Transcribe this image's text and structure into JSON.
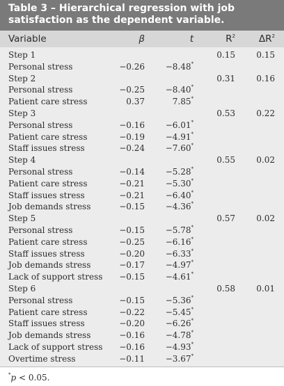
{
  "title": "Table 3 – Hierarchical regression with job satisfaction as the dependent variable.",
  "columns": {
    "variable": "Variable",
    "beta": "β",
    "t": "t",
    "r2": "R",
    "r2_sup": "2",
    "dr2": "ΔR",
    "dr2_sup": "2"
  },
  "rows": [
    {
      "variable": "Step 1",
      "beta": "",
      "t": "",
      "sig": "",
      "r2": "0.15",
      "dr2": "0.15"
    },
    {
      "variable": "Personal stress",
      "beta": "−0.26",
      "t": "−8.48",
      "sig": "*",
      "r2": "",
      "dr2": ""
    },
    {
      "variable": "Step 2",
      "beta": "",
      "t": "",
      "sig": "",
      "r2": "0.31",
      "dr2": "0.16"
    },
    {
      "variable": "Personal stress",
      "beta": "−0.25",
      "t": "−8.40",
      "sig": "*",
      "r2": "",
      "dr2": ""
    },
    {
      "variable": "Patient care stress",
      "beta": "0.37",
      "t": "7.85",
      "sig": "*",
      "r2": "",
      "dr2": ""
    },
    {
      "variable": "Step 3",
      "beta": "",
      "t": "",
      "sig": "",
      "r2": "0.53",
      "dr2": "0.22"
    },
    {
      "variable": "Personal stress",
      "beta": "−0.16",
      "t": "−6.01",
      "sig": "*",
      "r2": "",
      "dr2": ""
    },
    {
      "variable": "Patient care stress",
      "beta": "−0.19",
      "t": "−4.91",
      "sig": "*",
      "r2": "",
      "dr2": ""
    },
    {
      "variable": "Staff issues stress",
      "beta": "−0.24",
      "t": "−7.60",
      "sig": "*",
      "r2": "",
      "dr2": ""
    },
    {
      "variable": "Step 4",
      "beta": "",
      "t": "",
      "sig": "",
      "r2": "0.55",
      "dr2": "0.02"
    },
    {
      "variable": "Personal stress",
      "beta": "−0.14",
      "t": "−5.28",
      "sig": "*",
      "r2": "",
      "dr2": ""
    },
    {
      "variable": "Patient care stress",
      "beta": "−0.21",
      "t": "−5.30",
      "sig": "*",
      "r2": "",
      "dr2": ""
    },
    {
      "variable": "Staff issues stress",
      "beta": "−0.21",
      "t": "−6.40",
      "sig": "*",
      "r2": "",
      "dr2": ""
    },
    {
      "variable": "Job demands stress",
      "beta": "−0.15",
      "t": "−4.36",
      "sig": "*",
      "r2": "",
      "dr2": ""
    },
    {
      "variable": "Step 5",
      "beta": "",
      "t": "",
      "sig": "",
      "r2": "0.57",
      "dr2": "0.02"
    },
    {
      "variable": "Personal stress",
      "beta": "−0.15",
      "t": "−5.78",
      "sig": "*",
      "r2": "",
      "dr2": ""
    },
    {
      "variable": "Patient care stress",
      "beta": "−0.25",
      "t": "−6.16",
      "sig": "*",
      "r2": "",
      "dr2": ""
    },
    {
      "variable": "Staff issues stress",
      "beta": "−0.20",
      "t": "−6.33",
      "sig": "*",
      "r2": "",
      "dr2": ""
    },
    {
      "variable": "Job demands stress",
      "beta": "−0.17",
      "t": "−4.97",
      "sig": "*",
      "r2": "",
      "dr2": ""
    },
    {
      "variable": "Lack of support stress",
      "beta": "−0.15",
      "t": "−4.61",
      "sig": "*",
      "r2": "",
      "dr2": ""
    },
    {
      "variable": "Step 6",
      "beta": "",
      "t": "",
      "sig": "",
      "r2": "0.58",
      "dr2": "0.01"
    },
    {
      "variable": "Personal stress",
      "beta": "−0.15",
      "t": "−5.36",
      "sig": "*",
      "r2": "",
      "dr2": ""
    },
    {
      "variable": "Patient care stress",
      "beta": "−0.22",
      "t": "−5.45",
      "sig": "*",
      "r2": "",
      "dr2": ""
    },
    {
      "variable": "Staff issues stress",
      "beta": "−0.20",
      "t": "−6.26",
      "sig": "*",
      "r2": "",
      "dr2": ""
    },
    {
      "variable": "Job demands stress",
      "beta": "−0.16",
      "t": "−4.78",
      "sig": "*",
      "r2": "",
      "dr2": ""
    },
    {
      "variable": "Lack of support stress",
      "beta": "−0.16",
      "t": "−4.93",
      "sig": "*",
      "r2": "",
      "dr2": ""
    },
    {
      "variable": "Overtime stress",
      "beta": "−0.11",
      "t": "−3.67",
      "sig": "*",
      "r2": "",
      "dr2": ""
    }
  ],
  "footnote": {
    "mark": "*",
    "var": "p",
    "text": " < 0.05."
  }
}
